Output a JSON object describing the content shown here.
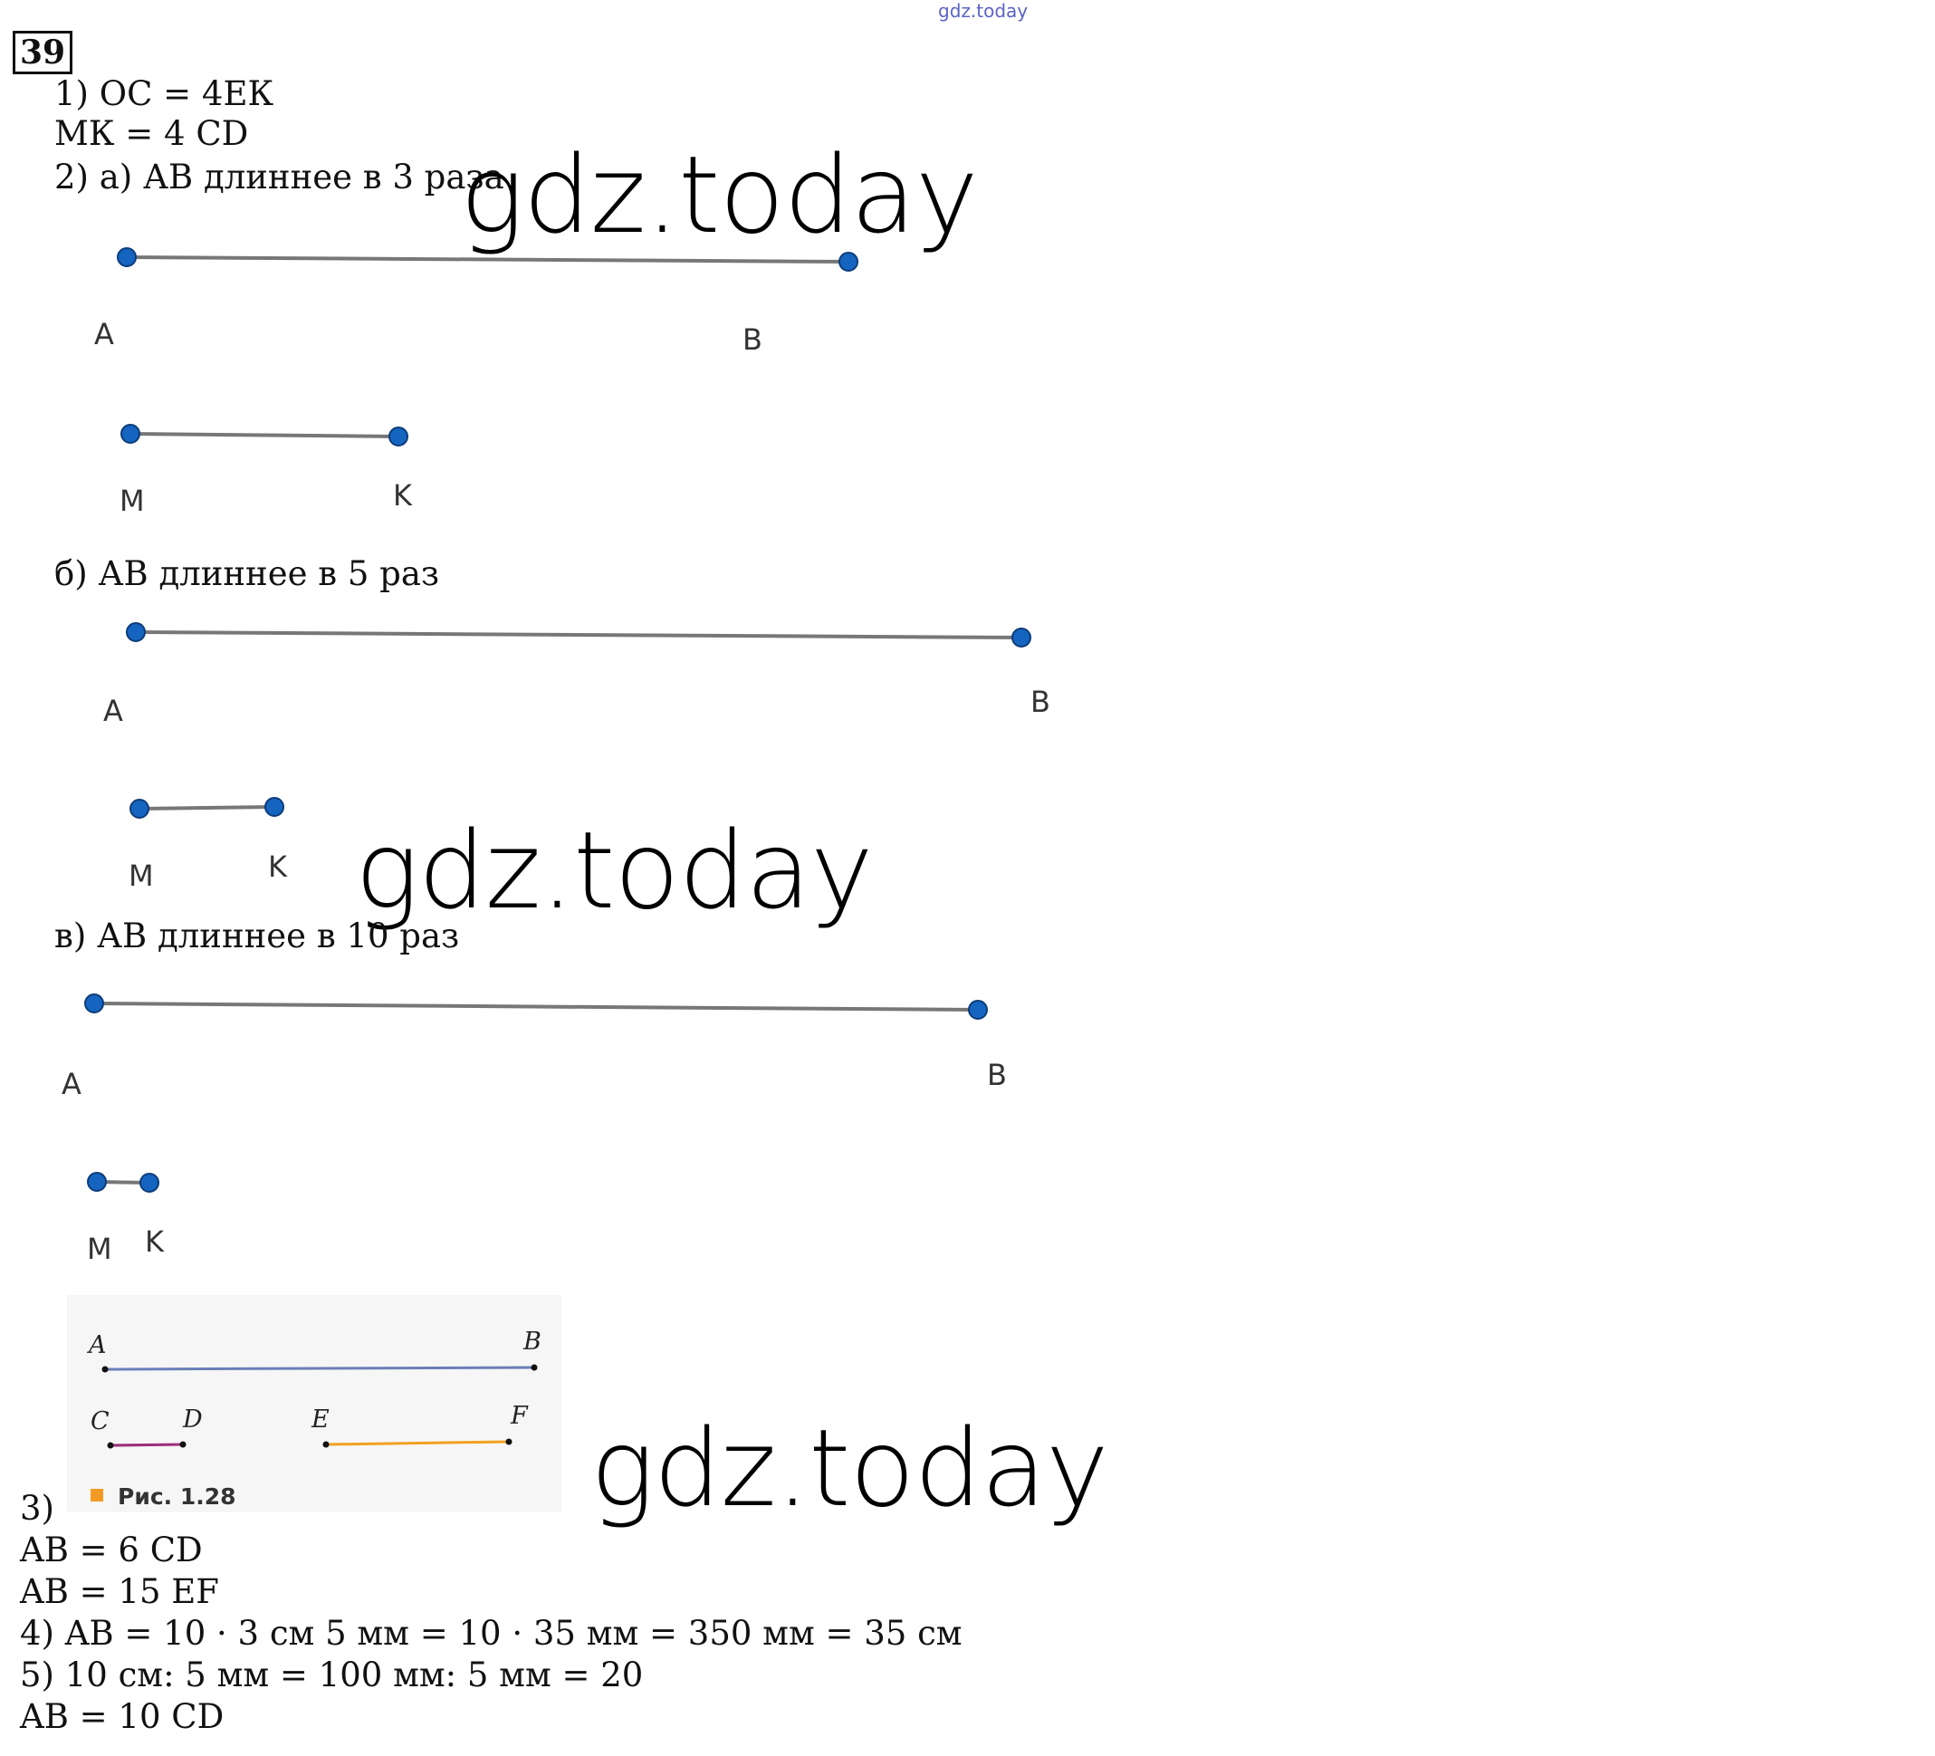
{
  "watermark_small": "gdz.today",
  "watermark_big": "gdz.today",
  "task_number": "39",
  "part1": {
    "line1": "1) ОС = 4ЕК",
    "line2": "МК = 4 CD"
  },
  "part2a": {
    "label": "2) а) АВ длиннее в 3 раза",
    "A": "A",
    "B": "B",
    "M": "M",
    "K": "K"
  },
  "part2b": {
    "label": "б) АВ длиннее в 5 раз",
    "A": "A",
    "B": "B",
    "M": "M",
    "K": "K"
  },
  "part2c": {
    "label": "в) АВ длиннее в 10 раз",
    "A": "A",
    "B": "B",
    "M": "M",
    "K": "K"
  },
  "figure": {
    "A": "A",
    "B": "B",
    "C": "C",
    "D": "D",
    "E": "E",
    "F": "F",
    "caption": "Рис. 1.28"
  },
  "part3": {
    "label": "3)",
    "line1": "AB  =  6 CD",
    "line2": "AB  =  15 EF"
  },
  "part4": "4) AB  =  10 · 3 см 5 мм = 10 ·  35 мм = 350 мм = 35 см",
  "part5": {
    "line1": "5) 10 см: 5 мм = 100 мм: 5 мм = 20",
    "line2": "AB = 10 CD"
  },
  "colors": {
    "point": "#1565c0",
    "segment": "#777777",
    "ab_fig": "#6a7fb8",
    "cd_fig": "#9c2f7a",
    "ef_fig": "#f0a11e"
  }
}
